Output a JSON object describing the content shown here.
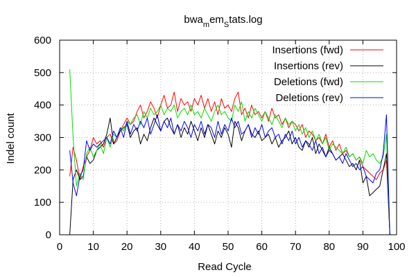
{
  "chart_data": {
    "type": "line",
    "title": {
      "part1": "bwa",
      "sub1": "m",
      "part2": "em",
      "sub2": "S",
      "part3": "tats.log"
    },
    "xlabel": "Read Cycle",
    "ylabel": "Indel count",
    "xlim": [
      0,
      100
    ],
    "ylim": [
      0,
      600
    ],
    "xticks": [
      0,
      10,
      20,
      30,
      40,
      50,
      60,
      70,
      80,
      90,
      100
    ],
    "yticks": [
      0,
      100,
      200,
      300,
      400,
      500,
      600
    ],
    "grid": true,
    "legend_position": "top-right",
    "series": [
      {
        "name": "Insertions (fwd)",
        "color": "#ff0000",
        "x": [
          3,
          4,
          5,
          6,
          7,
          8,
          9,
          10,
          11,
          12,
          13,
          14,
          15,
          16,
          17,
          18,
          19,
          20,
          21,
          22,
          23,
          24,
          25,
          26,
          27,
          28,
          29,
          30,
          31,
          32,
          33,
          34,
          35,
          36,
          37,
          38,
          39,
          40,
          41,
          42,
          43,
          44,
          45,
          46,
          47,
          48,
          49,
          50,
          51,
          52,
          53,
          54,
          55,
          56,
          57,
          58,
          59,
          60,
          61,
          62,
          63,
          64,
          65,
          66,
          67,
          68,
          69,
          70,
          71,
          72,
          73,
          74,
          75,
          76,
          77,
          78,
          79,
          80,
          81,
          82,
          83,
          84,
          85,
          86,
          87,
          88,
          89,
          90,
          91,
          92,
          93,
          94,
          95,
          96,
          97,
          98
        ],
        "y": [
          180,
          270,
          230,
          170,
          210,
          240,
          260,
          300,
          280,
          290,
          270,
          300,
          310,
          280,
          290,
          320,
          340,
          360,
          340,
          350,
          380,
          400,
          360,
          380,
          410,
          390,
          360,
          400,
          430,
          390,
          400,
          440,
          380,
          420,
          400,
          410,
          380,
          420,
          400,
          430,
          390,
          420,
          380,
          410,
          370,
          420,
          390,
          400,
          380,
          420,
          440,
          370,
          390,
          360,
          400,
          370,
          380,
          360,
          380,
          350,
          390,
          360,
          370,
          340,
          360,
          330,
          350,
          340,
          320,
          340,
          300,
          320,
          310,
          290,
          300,
          280,
          310,
          270,
          290,
          260,
          280,
          250,
          260,
          240,
          250,
          230,
          240,
          210,
          200,
          190,
          180,
          170,
          190,
          200,
          230,
          0
        ]
      },
      {
        "name": "Insertions (rev)",
        "color": "#000000",
        "x": [
          3,
          4,
          5,
          6,
          7,
          8,
          9,
          10,
          11,
          12,
          13,
          14,
          15,
          16,
          17,
          18,
          19,
          20,
          21,
          22,
          23,
          24,
          25,
          26,
          27,
          28,
          29,
          30,
          31,
          32,
          33,
          34,
          35,
          36,
          37,
          38,
          39,
          40,
          41,
          42,
          43,
          44,
          45,
          46,
          47,
          48,
          49,
          50,
          51,
          52,
          53,
          54,
          55,
          56,
          57,
          58,
          59,
          60,
          61,
          62,
          63,
          64,
          65,
          66,
          67,
          68,
          69,
          70,
          71,
          72,
          73,
          74,
          75,
          76,
          77,
          78,
          79,
          80,
          81,
          82,
          83,
          84,
          85,
          86,
          87,
          88,
          89,
          90,
          91,
          92,
          93,
          94,
          95,
          96,
          97,
          98
        ],
        "y": [
          0,
          170,
          200,
          170,
          180,
          240,
          220,
          230,
          260,
          270,
          280,
          310,
          360,
          280,
          300,
          320,
          330,
          340,
          300,
          320,
          330,
          280,
          310,
          290,
          330,
          360,
          340,
          320,
          350,
          360,
          330,
          310,
          340,
          300,
          330,
          310,
          350,
          320,
          290,
          330,
          300,
          340,
          310,
          280,
          320,
          300,
          330,
          310,
          270,
          350,
          330,
          290,
          320,
          340,
          310,
          300,
          320,
          290,
          300,
          310,
          280,
          300,
          270,
          290,
          300,
          320,
          280,
          300,
          270,
          260,
          290,
          270,
          300,
          250,
          280,
          260,
          240,
          270,
          250,
          230,
          240,
          250,
          230,
          210,
          220,
          200,
          230,
          160,
          180,
          120,
          130,
          140,
          150,
          200,
          250,
          0
        ]
      },
      {
        "name": "Deletions (fwd)",
        "color": "#00dd00",
        "x": [
          3,
          4,
          5,
          6,
          7,
          8,
          9,
          10,
          11,
          12,
          13,
          14,
          15,
          16,
          17,
          18,
          19,
          20,
          21,
          22,
          23,
          24,
          25,
          26,
          27,
          28,
          29,
          30,
          31,
          32,
          33,
          34,
          35,
          36,
          37,
          38,
          39,
          40,
          41,
          42,
          43,
          44,
          45,
          46,
          47,
          48,
          49,
          50,
          51,
          52,
          53,
          54,
          55,
          56,
          57,
          58,
          59,
          60,
          61,
          62,
          63,
          64,
          65,
          66,
          67,
          68,
          69,
          70,
          71,
          72,
          73,
          74,
          75,
          76,
          77,
          78,
          79,
          80,
          81,
          82,
          83,
          84,
          85,
          86,
          87,
          88,
          89,
          90,
          91,
          92,
          93,
          94,
          95,
          96,
          97,
          98
        ],
        "y": [
          510,
          300,
          150,
          190,
          170,
          250,
          270,
          240,
          260,
          280,
          250,
          300,
          270,
          310,
          300,
          330,
          320,
          350,
          340,
          360,
          370,
          340,
          380,
          360,
          390,
          370,
          380,
          400,
          370,
          390,
          380,
          400,
          360,
          380,
          390,
          370,
          400,
          370,
          380,
          360,
          390,
          370,
          350,
          380,
          400,
          370,
          380,
          360,
          350,
          400,
          380,
          410,
          350,
          380,
          360,
          390,
          370,
          350,
          380,
          360,
          340,
          370,
          350,
          330,
          360,
          340,
          350,
          320,
          340,
          310,
          330,
          300,
          320,
          290,
          310,
          280,
          300,
          260,
          280,
          270,
          260,
          250,
          270,
          240,
          250,
          230,
          240,
          220,
          260,
          240,
          250,
          230,
          220,
          240,
          310,
          0
        ]
      },
      {
        "name": "Deletions (rev)",
        "color": "#0000ff",
        "x": [
          3,
          4,
          5,
          6,
          7,
          8,
          9,
          10,
          11,
          12,
          13,
          14,
          15,
          16,
          17,
          18,
          19,
          20,
          21,
          22,
          23,
          24,
          25,
          26,
          27,
          28,
          29,
          30,
          31,
          32,
          33,
          34,
          35,
          36,
          37,
          38,
          39,
          40,
          41,
          42,
          43,
          44,
          45,
          46,
          47,
          48,
          49,
          50,
          51,
          52,
          53,
          54,
          55,
          56,
          57,
          58,
          59,
          60,
          61,
          62,
          63,
          64,
          65,
          66,
          67,
          68,
          69,
          70,
          71,
          72,
          73,
          74,
          75,
          76,
          77,
          78,
          79,
          80,
          81,
          82,
          83,
          84,
          85,
          86,
          87,
          88,
          89,
          90,
          91,
          92,
          93,
          94,
          95,
          96,
          97,
          98
        ],
        "y": [
          260,
          160,
          120,
          180,
          200,
          290,
          260,
          280,
          270,
          280,
          290,
          300,
          280,
          320,
          300,
          330,
          300,
          350,
          310,
          340,
          320,
          350,
          330,
          360,
          310,
          340,
          370,
          320,
          350,
          330,
          360,
          310,
          340,
          320,
          350,
          330,
          300,
          340,
          320,
          350,
          310,
          340,
          330,
          300,
          350,
          310,
          340,
          320,
          360,
          330,
          350,
          310,
          320,
          340,
          300,
          330,
          310,
          340,
          300,
          320,
          330,
          300,
          310,
          280,
          310,
          290,
          320,
          280,
          300,
          270,
          290,
          280,
          260,
          290,
          250,
          270,
          240,
          260,
          250,
          230,
          240,
          220,
          250,
          230,
          210,
          220,
          200,
          210,
          180,
          170,
          160,
          190,
          200,
          250,
          370,
          0
        ]
      }
    ]
  }
}
